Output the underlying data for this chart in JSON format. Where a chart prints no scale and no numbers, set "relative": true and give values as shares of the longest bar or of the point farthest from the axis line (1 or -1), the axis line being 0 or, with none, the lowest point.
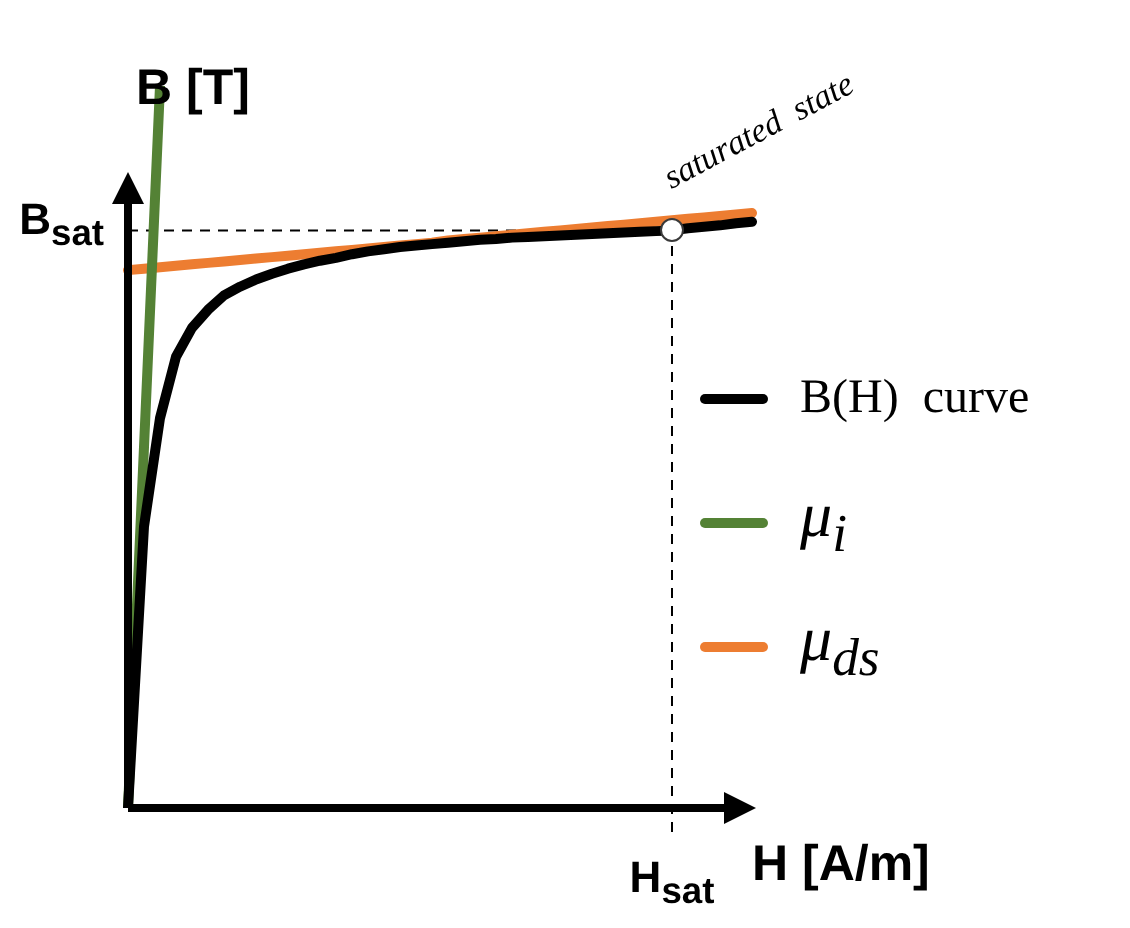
{
  "chart_data": {
    "type": "line",
    "relative": true,
    "xlabel": "H [A/m]",
    "ylabel": "B [T]",
    "legend": "right",
    "marker": "none",
    "categories": [
      null,
      null,
      null,
      null,
      null,
      null,
      null,
      null,
      null,
      null,
      null,
      null,
      null,
      null,
      null,
      null,
      null,
      null,
      null,
      null,
      null,
      null,
      null,
      null,
      null,
      null,
      null,
      null,
      null,
      null,
      null,
      null,
      null,
      null,
      null,
      null,
      null,
      null,
      null,
      null
    ],
    "series": [
      {
        "name": "B(H)  curve",
        "color": "#000000",
        "values": [
          0,
          0.39,
          0.54,
          0.625,
          0.665,
          0.69,
          0.71,
          0.722,
          0.732,
          0.74,
          0.747,
          0.753,
          0.758,
          0.762,
          0.767,
          0.771,
          0.774,
          0.777,
          0.779,
          0.781,
          0.783,
          0.785,
          0.787,
          0.788,
          0.79,
          0.791,
          0.792,
          0.793,
          0.794,
          0.795,
          0.796,
          0.797,
          0.798,
          0.799,
          0.8,
          0.803,
          0.805,
          0.807,
          0.81,
          0.812
        ]
      },
      {
        "name": "μ$_{i}$",
        "color": "#548235",
        "values": [
          0,
          0.5,
          1,
          null,
          null,
          null,
          null,
          null,
          null,
          null,
          null,
          null,
          null,
          null,
          null,
          null,
          null,
          null,
          null,
          null,
          null,
          null,
          null,
          null,
          null,
          null,
          null,
          null,
          null,
          null,
          null,
          null,
          null,
          null,
          null,
          null,
          null,
          null,
          null,
          null
        ]
      },
      {
        "name": "μ$_{ds}$",
        "color": "#ed7d31",
        "values": [
          0.745,
          0.747,
          0.749,
          0.751,
          0.753,
          0.755,
          0.757,
          0.759,
          0.761,
          0.763,
          0.765,
          0.767,
          0.769,
          0.771,
          0.773,
          0.775,
          0.777,
          0.779,
          0.781,
          0.783,
          0.786,
          0.788,
          0.79,
          0.792,
          0.794,
          0.796,
          0.798,
          0.8,
          0.802,
          0.804,
          0.806,
          0.808,
          0.81,
          0.812,
          0.814,
          0.816,
          0.818,
          0.82,
          0.822,
          0.824
        ]
      }
    ],
    "ref_lines": [
      {
        "axis": "y",
        "value": 0.8,
        "label": "B$_{sat}$",
        "color": "#000000",
        "line_style": "dashed"
      }
    ],
    "annotations": [
      "saturated state",
      "H$_{sat}$"
    ]
  }
}
